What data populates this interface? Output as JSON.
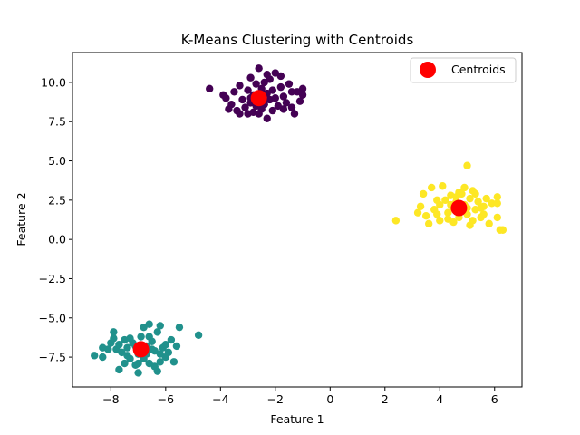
{
  "chart_data": {
    "type": "scatter",
    "title": "K-Means Clustering with Centroids",
    "xlabel": "Feature 1",
    "ylabel": "Feature 2",
    "xlim": [
      -9.4,
      7.0
    ],
    "ylim": [
      -9.4,
      11.9
    ],
    "xticks": [
      -8,
      -6,
      -4,
      -2,
      0,
      2,
      4,
      6
    ],
    "xtick_labels": [
      "−8",
      "−6",
      "−4",
      "−2",
      "0",
      "2",
      "4",
      "6"
    ],
    "yticks": [
      -7.5,
      -5.0,
      -2.5,
      0.0,
      2.5,
      5.0,
      7.5,
      10.0
    ],
    "ytick_labels": [
      "−7.5",
      "−5.0",
      "−2.5",
      "0.0",
      "2.5",
      "5.0",
      "7.5",
      "10.0"
    ],
    "grid": false,
    "legend": {
      "position": "upper right",
      "entries": [
        "Centroids"
      ]
    },
    "series": [
      {
        "color": "#440154",
        "points": [
          [
            -4.4,
            9.6
          ],
          [
            -3.8,
            9.0
          ],
          [
            -3.6,
            8.6
          ],
          [
            -3.5,
            9.4
          ],
          [
            -3.4,
            8.2
          ],
          [
            -3.3,
            9.8
          ],
          [
            -3.2,
            8.9
          ],
          [
            -3.1,
            8.4
          ],
          [
            -3.0,
            9.5
          ],
          [
            -3.0,
            8.0
          ],
          [
            -2.9,
            10.3
          ],
          [
            -2.9,
            8.7
          ],
          [
            -2.8,
            9.2
          ],
          [
            -2.8,
            8.1
          ],
          [
            -2.7,
            9.9
          ],
          [
            -2.7,
            8.5
          ],
          [
            -2.6,
            10.9
          ],
          [
            -2.6,
            9.0
          ],
          [
            -2.5,
            8.3
          ],
          [
            -2.5,
            9.6
          ],
          [
            -2.4,
            10.0
          ],
          [
            -2.4,
            8.6
          ],
          [
            -2.3,
            9.3
          ],
          [
            -2.3,
            7.7
          ],
          [
            -2.2,
            8.9
          ],
          [
            -2.2,
            10.2
          ],
          [
            -2.1,
            9.5
          ],
          [
            -2.1,
            8.2
          ],
          [
            -2.0,
            9.0
          ],
          [
            -2.0,
            10.6
          ],
          [
            -1.9,
            8.5
          ],
          [
            -1.8,
            9.7
          ],
          [
            -1.8,
            10.4
          ],
          [
            -1.7,
            9.1
          ],
          [
            -1.6,
            8.7
          ],
          [
            -1.5,
            9.9
          ],
          [
            -1.4,
            8.4
          ],
          [
            -1.3,
            8.0
          ],
          [
            -1.2,
            9.4
          ],
          [
            -1.1,
            8.8
          ],
          [
            -1.0,
            9.6
          ],
          [
            -1.0,
            9.2
          ],
          [
            -3.7,
            8.3
          ],
          [
            -3.9,
            9.2
          ],
          [
            -3.3,
            8.0
          ],
          [
            -2.9,
            9.0
          ],
          [
            -2.6,
            8.0
          ],
          [
            -2.3,
            10.5
          ],
          [
            -1.7,
            8.3
          ],
          [
            -1.4,
            9.4
          ]
        ]
      },
      {
        "color": "#21918c",
        "points": [
          [
            -8.6,
            -7.4
          ],
          [
            -8.3,
            -7.5
          ],
          [
            -8.3,
            -6.9
          ],
          [
            -8.0,
            -6.6
          ],
          [
            -7.9,
            -5.9
          ],
          [
            -7.8,
            -7.0
          ],
          [
            -7.7,
            -8.3
          ],
          [
            -7.6,
            -7.2
          ],
          [
            -7.5,
            -6.4
          ],
          [
            -7.5,
            -7.9
          ],
          [
            -7.4,
            -6.9
          ],
          [
            -7.3,
            -7.6
          ],
          [
            -7.2,
            -6.6
          ],
          [
            -7.1,
            -8.0
          ],
          [
            -7.1,
            -6.8
          ],
          [
            -7.0,
            -8.5
          ],
          [
            -7.0,
            -7.3
          ],
          [
            -6.9,
            -6.2
          ],
          [
            -6.8,
            -5.6
          ],
          [
            -6.8,
            -7.6
          ],
          [
            -6.7,
            -6.8
          ],
          [
            -6.6,
            -5.4
          ],
          [
            -6.6,
            -7.9
          ],
          [
            -6.5,
            -6.5
          ],
          [
            -6.4,
            -7.1
          ],
          [
            -6.4,
            -8.1
          ],
          [
            -6.3,
            -5.9
          ],
          [
            -6.3,
            -8.4
          ],
          [
            -6.2,
            -5.5
          ],
          [
            -6.1,
            -6.9
          ],
          [
            -6.0,
            -7.5
          ],
          [
            -6.0,
            -6.7
          ],
          [
            -5.9,
            -7.2
          ],
          [
            -5.8,
            -6.4
          ],
          [
            -5.7,
            -7.8
          ],
          [
            -5.6,
            -6.8
          ],
          [
            -5.5,
            -5.6
          ],
          [
            -4.8,
            -6.1
          ],
          [
            -7.7,
            -6.7
          ],
          [
            -7.4,
            -7.4
          ],
          [
            -6.9,
            -6.9
          ],
          [
            -6.7,
            -7.3
          ],
          [
            -6.5,
            -7.0
          ],
          [
            -6.2,
            -7.3
          ],
          [
            -7.3,
            -6.3
          ],
          [
            -6.6,
            -6.2
          ],
          [
            -7.0,
            -7.9
          ],
          [
            -6.2,
            -7.8
          ],
          [
            -8.1,
            -7.0
          ],
          [
            -7.9,
            -6.3
          ]
        ]
      },
      {
        "color": "#fde725",
        "points": [
          [
            2.4,
            1.2
          ],
          [
            3.2,
            1.7
          ],
          [
            3.3,
            2.1
          ],
          [
            3.4,
            2.9
          ],
          [
            3.5,
            1.5
          ],
          [
            3.6,
            1.0
          ],
          [
            3.7,
            3.3
          ],
          [
            3.8,
            1.9
          ],
          [
            3.9,
            1.6
          ],
          [
            4.0,
            2.2
          ],
          [
            4.0,
            1.2
          ],
          [
            4.1,
            3.4
          ],
          [
            4.2,
            2.5
          ],
          [
            4.3,
            1.7
          ],
          [
            4.4,
            2.8
          ],
          [
            4.5,
            2.0
          ],
          [
            4.5,
            1.1
          ],
          [
            4.6,
            2.4
          ],
          [
            4.7,
            1.4
          ],
          [
            4.8,
            2.9
          ],
          [
            4.8,
            1.8
          ],
          [
            4.9,
            3.3
          ],
          [
            4.9,
            2.2
          ],
          [
            5.0,
            4.7
          ],
          [
            5.0,
            1.6
          ],
          [
            5.1,
            2.6
          ],
          [
            5.1,
            0.9
          ],
          [
            5.2,
            3.1
          ],
          [
            5.3,
            1.9
          ],
          [
            5.4,
            2.4
          ],
          [
            5.5,
            1.4
          ],
          [
            5.6,
            2.1
          ],
          [
            5.7,
            2.6
          ],
          [
            5.8,
            1.0
          ],
          [
            5.9,
            2.3
          ],
          [
            6.1,
            1.4
          ],
          [
            6.1,
            2.7
          ],
          [
            6.2,
            0.6
          ],
          [
            6.3,
            0.6
          ],
          [
            6.1,
            2.3
          ],
          [
            4.3,
            1.3
          ],
          [
            4.6,
            2.7
          ],
          [
            5.0,
            2.0
          ],
          [
            5.3,
            2.9
          ],
          [
            5.6,
            1.6
          ],
          [
            4.4,
            2.2
          ],
          [
            5.2,
            1.2
          ],
          [
            3.9,
            2.5
          ],
          [
            4.7,
            3.0
          ],
          [
            5.5,
            2.0
          ]
        ]
      }
    ],
    "centroids": {
      "name": "Centroids",
      "color": "#ff0000",
      "points": [
        [
          -2.6,
          9.0
        ],
        [
          -6.9,
          -7.0
        ],
        [
          4.7,
          2.0
        ]
      ]
    }
  }
}
